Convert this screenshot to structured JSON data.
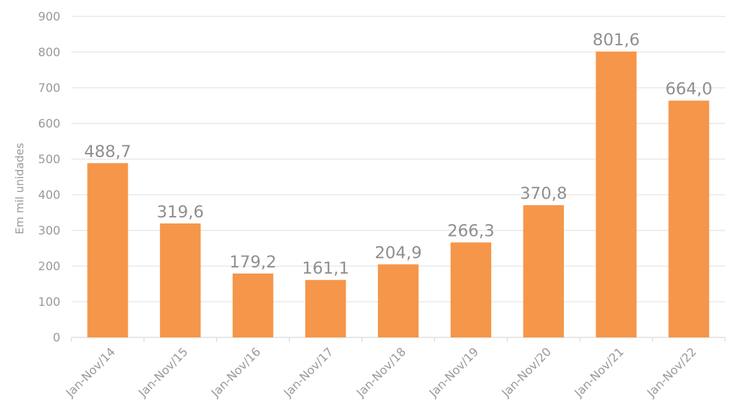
{
  "chart_data": {
    "type": "bar",
    "categories": [
      "Jan-Nov/14",
      "Jan-Nov/15",
      "Jan-Nov/16",
      "Jan-Nov/17",
      "Jan-Nov/18",
      "Jan-Nov/19",
      "Jan-Nov/20",
      "Jan-Nov/21",
      "Jan-Nov/22"
    ],
    "values": [
      488.7,
      319.6,
      179.2,
      161.1,
      204.9,
      266.3,
      370.8,
      801.6,
      664.0
    ],
    "data_labels": [
      "488,7",
      "319,6",
      "179,2",
      "161,1",
      "204,9",
      "266,3",
      "370,8",
      "801,6",
      "664,0"
    ],
    "ylabel": "Em mil unidades",
    "ylim": [
      0,
      900
    ],
    "yticks": [
      0,
      100,
      200,
      300,
      400,
      500,
      600,
      700,
      800,
      900
    ],
    "grid": true,
    "bar_color": "#F5964A"
  }
}
